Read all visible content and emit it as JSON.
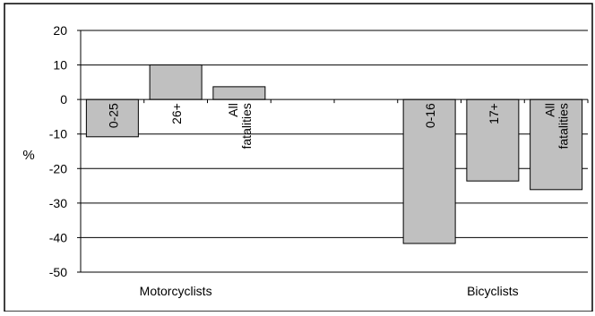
{
  "chart_data": {
    "type": "bar",
    "title": "",
    "ylabel": "%",
    "xlabel": "",
    "ylim": [
      -50,
      20
    ],
    "yticks": [
      20,
      10,
      0,
      -10,
      -20,
      -30,
      -40,
      -50
    ],
    "grid": true,
    "groups": [
      {
        "name": "Motorcyclists",
        "bars": [
          {
            "label": "0-25",
            "value": -10.8
          },
          {
            "label": "26+",
            "value": 10.0
          },
          {
            "label": "All fatalities",
            "value": 3.7
          }
        ]
      },
      {
        "name": "Bicyclists",
        "bars": [
          {
            "label": "0-16",
            "value": -41.7
          },
          {
            "label": "17+",
            "value": -23.6
          },
          {
            "label": "All fatalities",
            "value": -26.1
          }
        ]
      }
    ],
    "colors": {
      "bar_fill": "#c0c0c0",
      "bar_stroke": "#000000",
      "grid": "#000000"
    }
  }
}
